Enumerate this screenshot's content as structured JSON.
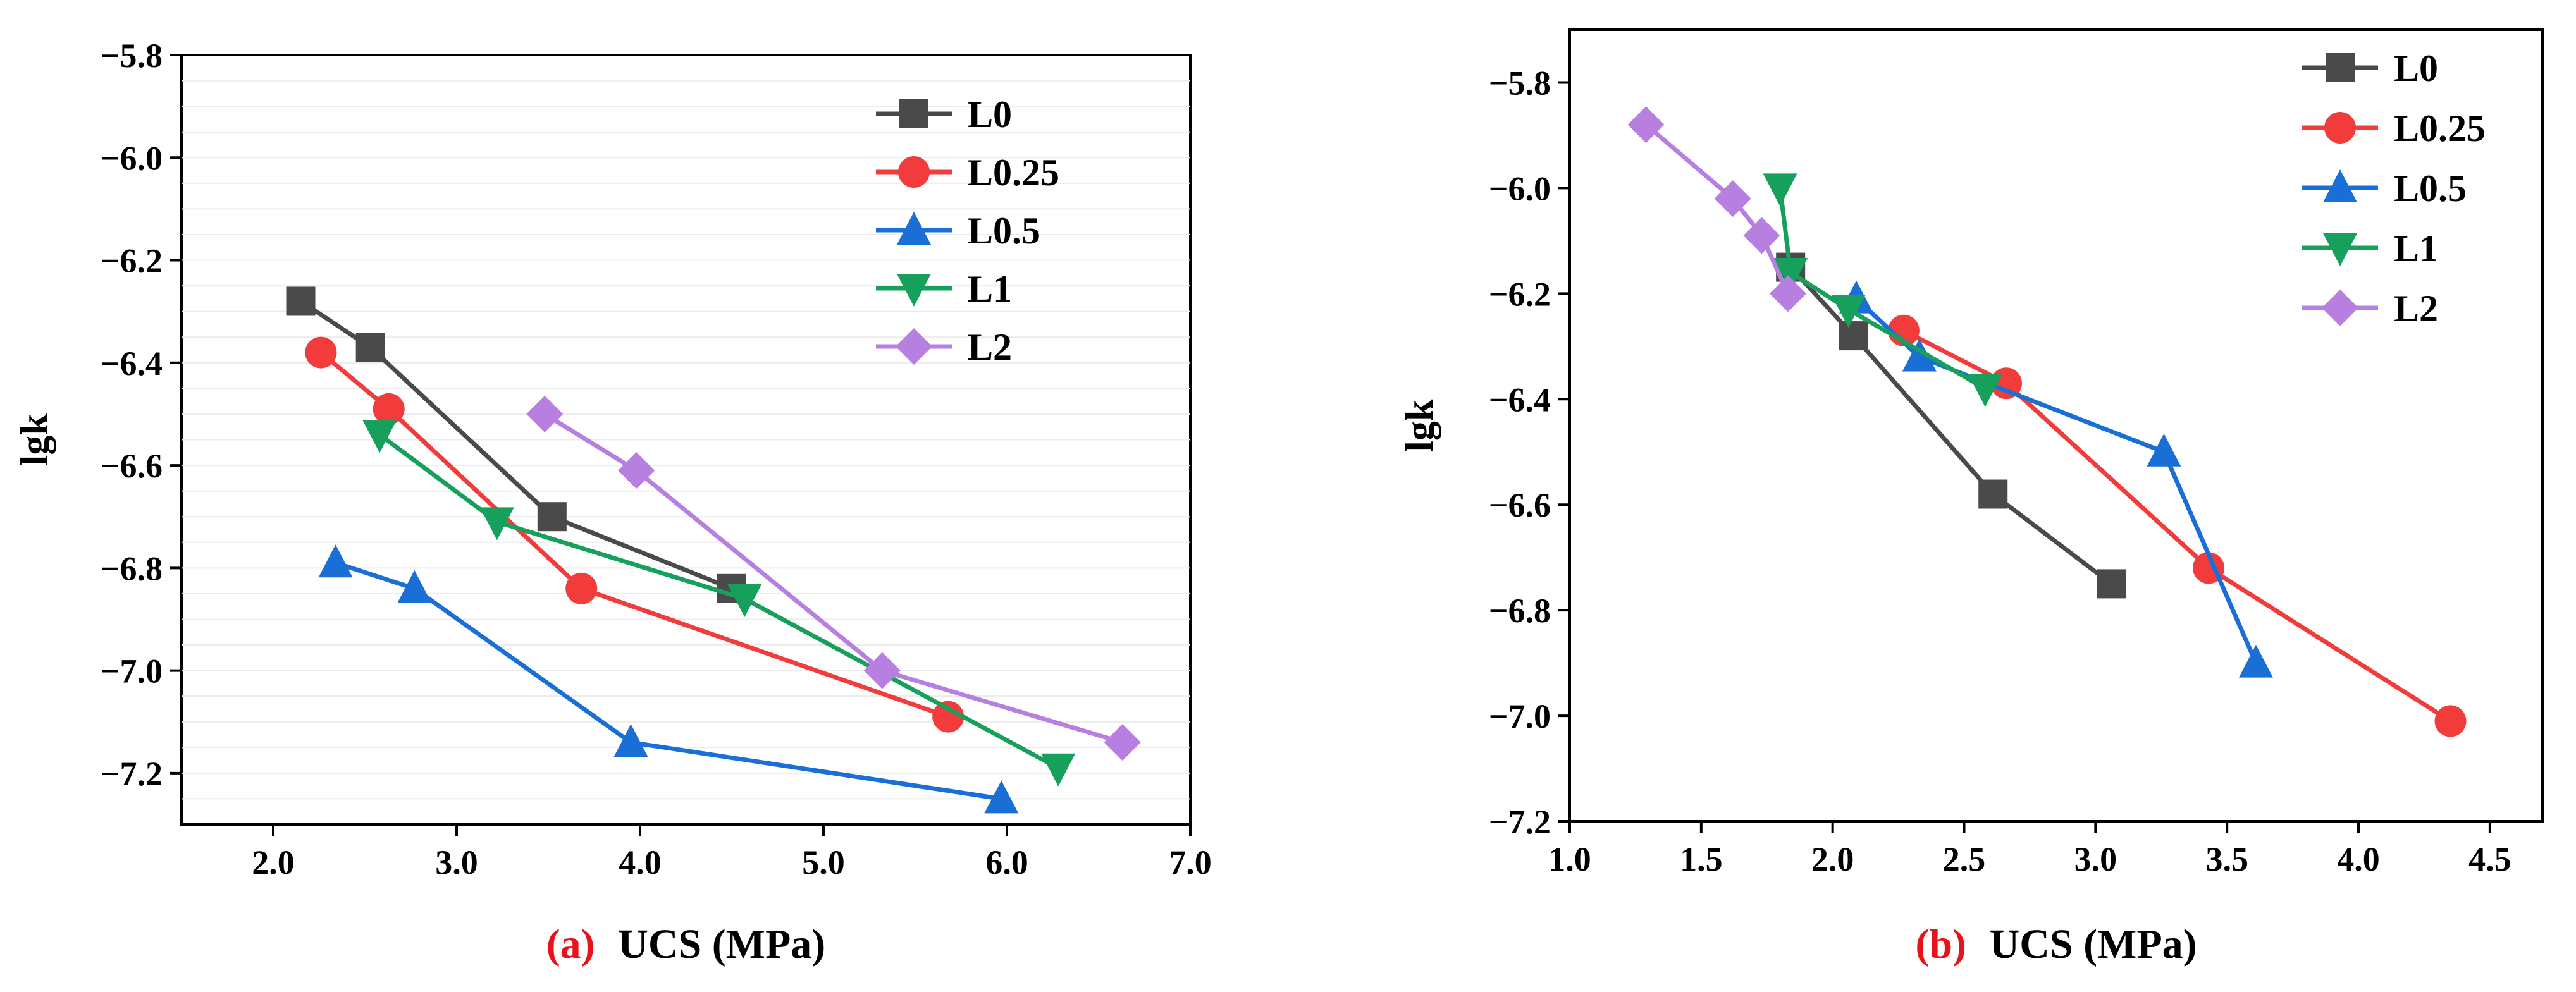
{
  "colors": {
    "L0": "#4a4a4a",
    "L0.25": "#f23c3c",
    "L0.5": "#1a6fd6",
    "L1": "#16a05c",
    "L2": "#b77fe0",
    "caption_letter": "#e8121b",
    "axis": "#000000"
  },
  "chart_data": [
    {
      "type": "line",
      "panel": "(a)",
      "title": "",
      "xlabel": "UCS (MPa)",
      "ylabel": "lgk",
      "xlim": [
        1.5,
        7.0
      ],
      "ylim": [
        -7.3,
        -5.8
      ],
      "xticks": [
        2.0,
        3.0,
        4.0,
        5.0,
        6.0,
        7.0
      ],
      "yticks": [
        -5.8,
        -6.0,
        -6.2,
        -6.4,
        -6.6,
        -6.8,
        -7.0,
        -7.2
      ],
      "xtick_labels": [
        "2.0",
        "3.0",
        "4.0",
        "5.0",
        "6.0",
        "7.0"
      ],
      "ytick_labels": [
        "−5.8",
        "−6.0",
        "−6.2",
        "−6.4",
        "−6.6",
        "−6.8",
        "−7.0",
        "−7.2"
      ],
      "legend_position": "top-right",
      "series": [
        {
          "name": "L0",
          "marker": "square",
          "x": [
            2.15,
            2.53,
            3.52,
            4.5
          ],
          "y": [
            -6.28,
            -6.37,
            -6.7,
            -6.84
          ]
        },
        {
          "name": "L0.25",
          "marker": "circle",
          "x": [
            2.26,
            2.63,
            3.68,
            5.68
          ],
          "y": [
            -6.38,
            -6.49,
            -6.84,
            -7.09
          ]
        },
        {
          "name": "L0.5",
          "marker": "triangle-up",
          "x": [
            2.34,
            2.77,
            3.95,
            5.97
          ],
          "y": [
            -6.79,
            -6.84,
            -7.14,
            -7.25
          ]
        },
        {
          "name": "L1",
          "marker": "triangle-down",
          "x": [
            2.58,
            3.22,
            4.57,
            6.28
          ],
          "y": [
            -6.54,
            -6.71,
            -6.86,
            -7.19
          ]
        },
        {
          "name": "L2",
          "marker": "diamond",
          "x": [
            3.48,
            3.98,
            5.32,
            6.63
          ],
          "y": [
            -6.5,
            -6.61,
            -7.0,
            -7.14
          ]
        }
      ]
    },
    {
      "type": "line",
      "panel": "(b)",
      "title": "",
      "xlabel": "UCS (MPa)",
      "ylabel": "lgk",
      "xlim": [
        1.0,
        4.7
      ],
      "ylim": [
        -7.2,
        -5.7
      ],
      "xticks": [
        1.0,
        1.5,
        2.0,
        2.5,
        3.0,
        3.5,
        4.0,
        4.5
      ],
      "yticks": [
        -5.8,
        -6.0,
        -6.2,
        -6.4,
        -6.6,
        -6.8,
        -7.0,
        -7.2
      ],
      "xtick_labels": [
        "1.0",
        "1.5",
        "2.0",
        "2.5",
        "3.0",
        "3.5",
        "4.0",
        "4.5"
      ],
      "ytick_labels": [
        "−5.8",
        "−6.0",
        "−6.2",
        "−6.4",
        "−6.6",
        "−6.8",
        "−7.0",
        "−7.2"
      ],
      "legend_position": "top-right",
      "series": [
        {
          "name": "L0",
          "marker": "square",
          "x": [
            1.84,
            2.08,
            2.61,
            3.06
          ],
          "y": [
            -6.15,
            -6.28,
            -6.58,
            -6.75
          ]
        },
        {
          "name": "L0.25",
          "marker": "circle",
          "x": [
            2.27,
            2.66,
            3.43,
            4.35
          ],
          "y": [
            -6.27,
            -6.37,
            -6.72,
            -7.01
          ]
        },
        {
          "name": "L0.5",
          "marker": "triangle-up",
          "x": [
            2.09,
            2.33,
            3.26,
            3.61
          ],
          "y": [
            -6.21,
            -6.32,
            -6.5,
            -6.9
          ]
        },
        {
          "name": "L1",
          "marker": "triangle-down",
          "x": [
            1.8,
            1.84,
            2.06,
            2.58
          ],
          "y": [
            -6.0,
            -6.16,
            -6.23,
            -6.38
          ]
        },
        {
          "name": "L2",
          "marker": "diamond",
          "x": [
            1.29,
            1.62,
            1.73,
            1.83
          ],
          "y": [
            -5.88,
            -6.02,
            -6.09,
            -6.2
          ]
        }
      ]
    }
  ]
}
